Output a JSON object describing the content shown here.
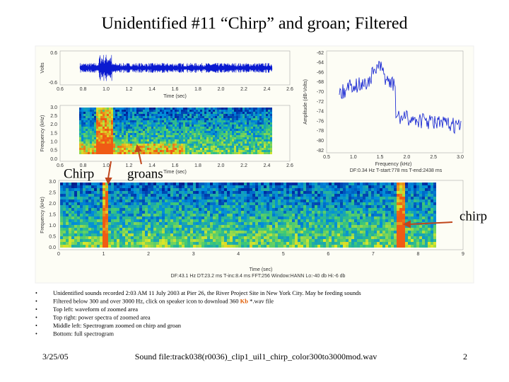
{
  "title": "Unidentified #11 “Chirp” and groan; Filtered",
  "waveform": {
    "y_label": "Volts",
    "x_label": "Time (sec)",
    "yticks": [
      "0.6",
      "-0.6"
    ],
    "xticks": [
      "0.6",
      "0.8",
      "1.0",
      "1.2",
      "1.4",
      "1.6",
      "1.8",
      "2.0",
      "2.2",
      "2.4",
      "2.6"
    ]
  },
  "zoom_spectrogram": {
    "y_label": "Frequency (kHz)",
    "x_label": "Time (sec)",
    "yticks": [
      "3.0",
      "2.5",
      "2.0",
      "1.5",
      "1.0",
      "0.5",
      "0.0"
    ],
    "xticks": [
      "0.6",
      "0.8",
      "1.0",
      "1.2",
      "1.4",
      "1.6",
      "1.8",
      "2.0",
      "2.2",
      "2.4",
      "2.6"
    ]
  },
  "power_spectrum": {
    "y_label": "Amplitude (dB-Volts)",
    "x_label": "Frequency (kHz)",
    "yticks": [
      "-62",
      "-64",
      "-66",
      "-68",
      "-70",
      "-72",
      "-74",
      "-76",
      "-78",
      "-80",
      "-82"
    ],
    "xticks": [
      "0.5",
      "1.0",
      "1.5",
      "2.0",
      "2.5",
      "3.0"
    ],
    "caption": "DF:0.34 Hz   T-start:778 ms   T-end:2438 ms"
  },
  "full_spectrogram": {
    "y_label": "Frequency (kHz)",
    "x_label": "Time (sec)",
    "yticks": [
      "3.0",
      "2.5",
      "2.0",
      "1.5",
      "1.0",
      "0.5",
      "0.0"
    ],
    "xticks": [
      "0",
      "1",
      "2",
      "3",
      "4",
      "5",
      "6",
      "7",
      "8",
      "9"
    ],
    "caption": "DF:43.1 Hz   DT:23.2 ms   T-inc:8.4 ms   FFT:256   Window:HANN   Lo:-40 db   Hi:-6 db"
  },
  "annotations": [
    "Chirp",
    "groans",
    "chirp"
  ],
  "bullets": [
    [
      "Unidentified sounds recorded 2:03 AM 11 July 2003 at Pier 26, the River Project Site in New York City. May be feeding sounds"
    ],
    [
      "Filtered below 300 and over 3000 Hz, click on speaker icon to download 360 ",
      "Kb",
      " *.wav file"
    ],
    [
      "Top left: waveform of zoomed area"
    ],
    [
      "Top right: power spectra of zoomed area"
    ],
    [
      "Middle left: Spectrogram zoomed on chirp and groan"
    ],
    [
      "Bottom: full spectrogram"
    ]
  ],
  "footer": {
    "date": "3/25/05",
    "sound_file": "Sound file:track038(r0036)_clip1_uil1_chirp_color300to3000mod.wav",
    "page": "2"
  }
}
